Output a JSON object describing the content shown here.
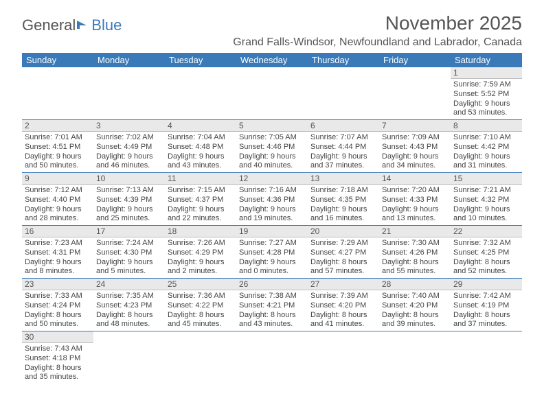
{
  "logo": {
    "text1": "General",
    "text2": "Blue"
  },
  "title": "November 2025",
  "location": "Grand Falls-Windsor, Newfoundland and Labrador, Canada",
  "colors": {
    "header_bg": "#3a7ab8",
    "header_text": "#ffffff",
    "daynum_bg": "#e9e9e9",
    "daynum_border": "#bcbcbc",
    "row_border": "#3a7ab8",
    "text": "#444444",
    "muted": "#555555",
    "background": "#ffffff"
  },
  "fonts": {
    "title_size": 28,
    "location_size": 16,
    "header_size": 13,
    "body_size": 11
  },
  "daysOfWeek": [
    "Sunday",
    "Monday",
    "Tuesday",
    "Wednesday",
    "Thursday",
    "Friday",
    "Saturday"
  ],
  "weeks": [
    [
      {
        "blank": true
      },
      {
        "blank": true
      },
      {
        "blank": true
      },
      {
        "blank": true
      },
      {
        "blank": true
      },
      {
        "blank": true
      },
      {
        "day": "1",
        "sunrise": "Sunrise: 7:59 AM",
        "sunset": "Sunset: 5:52 PM",
        "dl1": "Daylight: 9 hours",
        "dl2": "and 53 minutes."
      }
    ],
    [
      {
        "day": "2",
        "sunrise": "Sunrise: 7:01 AM",
        "sunset": "Sunset: 4:51 PM",
        "dl1": "Daylight: 9 hours",
        "dl2": "and 50 minutes."
      },
      {
        "day": "3",
        "sunrise": "Sunrise: 7:02 AM",
        "sunset": "Sunset: 4:49 PM",
        "dl1": "Daylight: 9 hours",
        "dl2": "and 46 minutes."
      },
      {
        "day": "4",
        "sunrise": "Sunrise: 7:04 AM",
        "sunset": "Sunset: 4:48 PM",
        "dl1": "Daylight: 9 hours",
        "dl2": "and 43 minutes."
      },
      {
        "day": "5",
        "sunrise": "Sunrise: 7:05 AM",
        "sunset": "Sunset: 4:46 PM",
        "dl1": "Daylight: 9 hours",
        "dl2": "and 40 minutes."
      },
      {
        "day": "6",
        "sunrise": "Sunrise: 7:07 AM",
        "sunset": "Sunset: 4:44 PM",
        "dl1": "Daylight: 9 hours",
        "dl2": "and 37 minutes."
      },
      {
        "day": "7",
        "sunrise": "Sunrise: 7:09 AM",
        "sunset": "Sunset: 4:43 PM",
        "dl1": "Daylight: 9 hours",
        "dl2": "and 34 minutes."
      },
      {
        "day": "8",
        "sunrise": "Sunrise: 7:10 AM",
        "sunset": "Sunset: 4:42 PM",
        "dl1": "Daylight: 9 hours",
        "dl2": "and 31 minutes."
      }
    ],
    [
      {
        "day": "9",
        "sunrise": "Sunrise: 7:12 AM",
        "sunset": "Sunset: 4:40 PM",
        "dl1": "Daylight: 9 hours",
        "dl2": "and 28 minutes."
      },
      {
        "day": "10",
        "sunrise": "Sunrise: 7:13 AM",
        "sunset": "Sunset: 4:39 PM",
        "dl1": "Daylight: 9 hours",
        "dl2": "and 25 minutes."
      },
      {
        "day": "11",
        "sunrise": "Sunrise: 7:15 AM",
        "sunset": "Sunset: 4:37 PM",
        "dl1": "Daylight: 9 hours",
        "dl2": "and 22 minutes."
      },
      {
        "day": "12",
        "sunrise": "Sunrise: 7:16 AM",
        "sunset": "Sunset: 4:36 PM",
        "dl1": "Daylight: 9 hours",
        "dl2": "and 19 minutes."
      },
      {
        "day": "13",
        "sunrise": "Sunrise: 7:18 AM",
        "sunset": "Sunset: 4:35 PM",
        "dl1": "Daylight: 9 hours",
        "dl2": "and 16 minutes."
      },
      {
        "day": "14",
        "sunrise": "Sunrise: 7:20 AM",
        "sunset": "Sunset: 4:33 PM",
        "dl1": "Daylight: 9 hours",
        "dl2": "and 13 minutes."
      },
      {
        "day": "15",
        "sunrise": "Sunrise: 7:21 AM",
        "sunset": "Sunset: 4:32 PM",
        "dl1": "Daylight: 9 hours",
        "dl2": "and 10 minutes."
      }
    ],
    [
      {
        "day": "16",
        "sunrise": "Sunrise: 7:23 AM",
        "sunset": "Sunset: 4:31 PM",
        "dl1": "Daylight: 9 hours",
        "dl2": "and 8 minutes."
      },
      {
        "day": "17",
        "sunrise": "Sunrise: 7:24 AM",
        "sunset": "Sunset: 4:30 PM",
        "dl1": "Daylight: 9 hours",
        "dl2": "and 5 minutes."
      },
      {
        "day": "18",
        "sunrise": "Sunrise: 7:26 AM",
        "sunset": "Sunset: 4:29 PM",
        "dl1": "Daylight: 9 hours",
        "dl2": "and 2 minutes."
      },
      {
        "day": "19",
        "sunrise": "Sunrise: 7:27 AM",
        "sunset": "Sunset: 4:28 PM",
        "dl1": "Daylight: 9 hours",
        "dl2": "and 0 minutes."
      },
      {
        "day": "20",
        "sunrise": "Sunrise: 7:29 AM",
        "sunset": "Sunset: 4:27 PM",
        "dl1": "Daylight: 8 hours",
        "dl2": "and 57 minutes."
      },
      {
        "day": "21",
        "sunrise": "Sunrise: 7:30 AM",
        "sunset": "Sunset: 4:26 PM",
        "dl1": "Daylight: 8 hours",
        "dl2": "and 55 minutes."
      },
      {
        "day": "22",
        "sunrise": "Sunrise: 7:32 AM",
        "sunset": "Sunset: 4:25 PM",
        "dl1": "Daylight: 8 hours",
        "dl2": "and 52 minutes."
      }
    ],
    [
      {
        "day": "23",
        "sunrise": "Sunrise: 7:33 AM",
        "sunset": "Sunset: 4:24 PM",
        "dl1": "Daylight: 8 hours",
        "dl2": "and 50 minutes."
      },
      {
        "day": "24",
        "sunrise": "Sunrise: 7:35 AM",
        "sunset": "Sunset: 4:23 PM",
        "dl1": "Daylight: 8 hours",
        "dl2": "and 48 minutes."
      },
      {
        "day": "25",
        "sunrise": "Sunrise: 7:36 AM",
        "sunset": "Sunset: 4:22 PM",
        "dl1": "Daylight: 8 hours",
        "dl2": "and 45 minutes."
      },
      {
        "day": "26",
        "sunrise": "Sunrise: 7:38 AM",
        "sunset": "Sunset: 4:21 PM",
        "dl1": "Daylight: 8 hours",
        "dl2": "and 43 minutes."
      },
      {
        "day": "27",
        "sunrise": "Sunrise: 7:39 AM",
        "sunset": "Sunset: 4:20 PM",
        "dl1": "Daylight: 8 hours",
        "dl2": "and 41 minutes."
      },
      {
        "day": "28",
        "sunrise": "Sunrise: 7:40 AM",
        "sunset": "Sunset: 4:20 PM",
        "dl1": "Daylight: 8 hours",
        "dl2": "and 39 minutes."
      },
      {
        "day": "29",
        "sunrise": "Sunrise: 7:42 AM",
        "sunset": "Sunset: 4:19 PM",
        "dl1": "Daylight: 8 hours",
        "dl2": "and 37 minutes."
      }
    ],
    [
      {
        "day": "30",
        "sunrise": "Sunrise: 7:43 AM",
        "sunset": "Sunset: 4:18 PM",
        "dl1": "Daylight: 8 hours",
        "dl2": "and 35 minutes."
      },
      {
        "blank": true
      },
      {
        "blank": true
      },
      {
        "blank": true
      },
      {
        "blank": true
      },
      {
        "blank": true
      },
      {
        "blank": true
      }
    ]
  ]
}
